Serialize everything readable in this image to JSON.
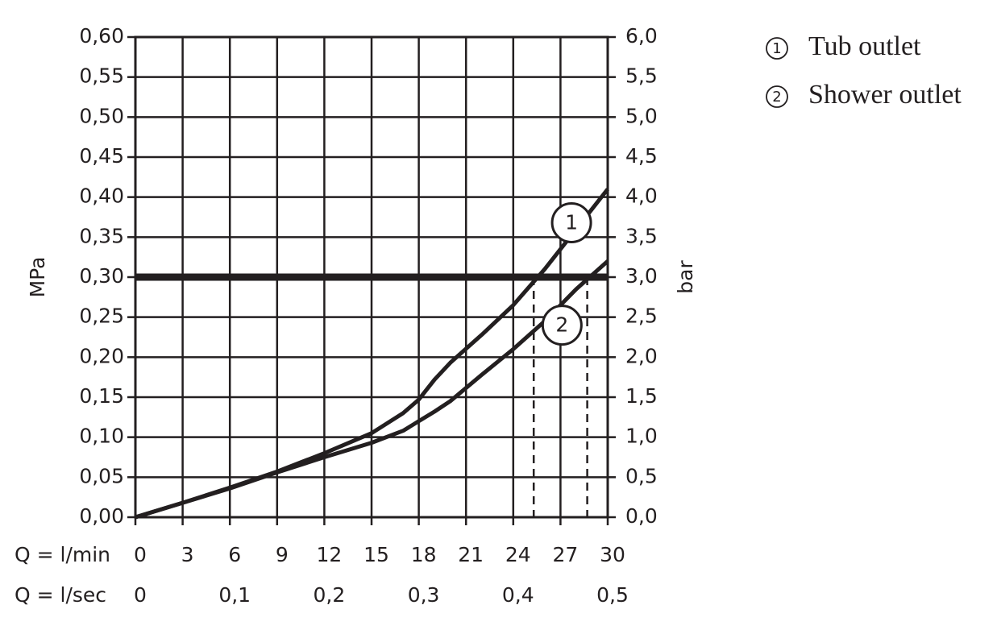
{
  "chart_data": {
    "type": "line",
    "ylabel": "MPa",
    "y2label": "bar",
    "xlabel": "Q = l/min",
    "x2label": "Q = l/sec",
    "xlim": [
      0,
      30
    ],
    "xticks": [
      0,
      3,
      6,
      9,
      12,
      15,
      18,
      21,
      24,
      27,
      30
    ],
    "x2lim": [
      0,
      0.5
    ],
    "x2ticks": [
      0,
      {
        "value": 0.1,
        "label": "0,1"
      },
      {
        "value": 0.2,
        "label": "0,2"
      },
      {
        "value": 0.3,
        "label": "0,3"
      },
      {
        "value": 0.4,
        "label": "0,4"
      },
      {
        "value": 0.5,
        "label": "0,5"
      }
    ],
    "ylim": [
      0,
      0.6
    ],
    "yticks": [
      {
        "value": 0,
        "label": "0,00"
      },
      {
        "value": 0.05,
        "label": "0,05"
      },
      {
        "value": 0.1,
        "label": "0,10"
      },
      {
        "value": 0.15,
        "label": "0,15"
      },
      {
        "value": 0.2,
        "label": "0,20"
      },
      {
        "value": 0.25,
        "label": "0,25"
      },
      {
        "value": 0.3,
        "label": "0,30"
      },
      {
        "value": 0.35,
        "label": "0,35"
      },
      {
        "value": 0.4,
        "label": "0,40"
      },
      {
        "value": 0.45,
        "label": "0,45"
      },
      {
        "value": 0.5,
        "label": "0,50"
      },
      {
        "value": 0.55,
        "label": "0,55"
      },
      {
        "value": 0.6,
        "label": "0,60"
      }
    ],
    "y2lim": [
      0,
      6
    ],
    "y2ticks": [
      {
        "value": 0,
        "label": "0,0"
      },
      {
        "value": 0.5,
        "label": "0,5"
      },
      {
        "value": 1,
        "label": "1,0"
      },
      {
        "value": 1.5,
        "label": "1,5"
      },
      {
        "value": 2,
        "label": "2,0"
      },
      {
        "value": 2.5,
        "label": "2,5"
      },
      {
        "value": 3,
        "label": "3,0"
      },
      {
        "value": 3.5,
        "label": "3,5"
      },
      {
        "value": 4,
        "label": "4,0"
      },
      {
        "value": 4.5,
        "label": "4,5"
      },
      {
        "value": 5,
        "label": "5,0"
      },
      {
        "value": 5.5,
        "label": "5,5"
      },
      {
        "value": 6,
        "label": "6,0"
      }
    ],
    "grid": true,
    "x": [
      0,
      3,
      6,
      9,
      12,
      15,
      17,
      18,
      19,
      20,
      22,
      24,
      26,
      28,
      30
    ],
    "series": [
      {
        "name": "Tub outlet",
        "label": "1",
        "color": "#231f20",
        "label_at": [
          27.7,
          0.368
        ],
        "values": [
          0,
          0.018,
          0.037,
          0.057,
          0.08,
          0.105,
          0.13,
          0.147,
          0.172,
          0.193,
          0.228,
          0.265,
          0.31,
          0.36,
          0.41
        ]
      },
      {
        "name": "Shower outlet",
        "label": "2",
        "color": "#231f20",
        "label_at": [
          27.1,
          0.24
        ],
        "values": [
          0,
          0.018,
          0.036,
          0.056,
          0.075,
          0.093,
          0.108,
          0.12,
          0.132,
          0.145,
          0.178,
          0.21,
          0.245,
          0.285,
          0.32
        ]
      }
    ],
    "annotations": {
      "hline": 0.3,
      "vlines": [
        25.3,
        28.7
      ]
    }
  }
}
